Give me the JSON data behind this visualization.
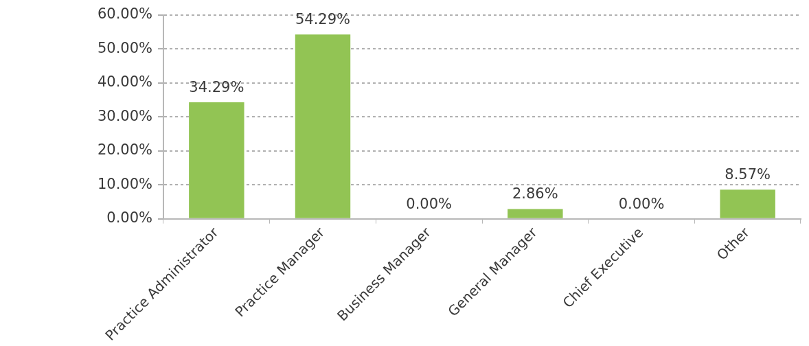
{
  "chart_data": {
    "type": "bar",
    "categories": [
      "Practice Administrator",
      "Practice Manager",
      "Business Manager",
      "General Manager",
      "Chief Executive",
      "Other"
    ],
    "values": [
      34.29,
      54.29,
      0,
      2.86,
      0,
      8.57
    ],
    "value_labels": [
      "34.29%",
      "54.29%",
      "0.00%",
      "2.86%",
      "0.00%",
      "8.57%"
    ],
    "color": "#92c454",
    "ylim": [
      0,
      60
    ],
    "yticks": [
      {
        "value": 0,
        "label": "0.00%"
      },
      {
        "value": 10,
        "label": "10.00%"
      },
      {
        "value": 20,
        "label": "20.00%"
      },
      {
        "value": 30,
        "label": "30.00%"
      },
      {
        "value": 40,
        "label": "40.00%"
      },
      {
        "value": 50,
        "label": "50.00%"
      },
      {
        "value": 60,
        "label": "60.00%"
      }
    ],
    "grid": "y"
  }
}
